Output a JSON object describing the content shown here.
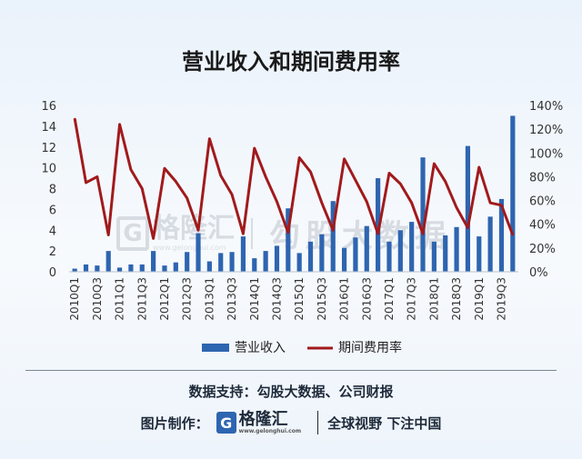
{
  "title": "营业收入和期间费用率",
  "chart_data": {
    "type": "bar",
    "categories": [
      "2010Q1",
      "2010Q2",
      "2010Q3",
      "2010Q4",
      "2011Q1",
      "2011Q2",
      "2011Q3",
      "2011Q4",
      "2012Q1",
      "2012Q2",
      "2012Q3",
      "2012Q4",
      "2013Q1",
      "2013Q2",
      "2013Q3",
      "2013Q4",
      "2014Q1",
      "2014Q2",
      "2014Q3",
      "2014Q4",
      "2015Q1",
      "2015Q2",
      "2015Q3",
      "2015Q4",
      "2016Q1",
      "2016Q2",
      "2016Q3",
      "2016Q4",
      "2017Q1",
      "2017Q2",
      "2017Q3",
      "2017Q4",
      "2018Q1",
      "2018Q2",
      "2018Q3",
      "2018Q4",
      "2019Q1",
      "2019Q2",
      "2019Q3",
      "2019Q4"
    ],
    "tick_labels": [
      "2010Q1",
      "2010Q3",
      "2011Q1",
      "2011Q3",
      "2012Q1",
      "2012Q3",
      "2013Q1",
      "2013Q3",
      "2014Q1",
      "2014Q3",
      "2015Q1",
      "2015Q3",
      "2016Q1",
      "2016Q3",
      "2017Q1",
      "2017Q3",
      "2018Q1",
      "2018Q3",
      "2019Q1",
      "2019Q3"
    ],
    "series": [
      {
        "name": "营业收入",
        "type": "bar",
        "axis": "left",
        "color": "#2e65b0",
        "values": [
          0.3,
          0.7,
          0.6,
          2.0,
          0.4,
          0.7,
          0.7,
          2.0,
          0.6,
          0.9,
          1.9,
          3.7,
          1.0,
          1.8,
          1.9,
          3.4,
          1.3,
          2.0,
          2.5,
          6.1,
          1.8,
          2.9,
          3.6,
          6.8,
          2.3,
          3.3,
          4.4,
          9.0,
          2.9,
          4.0,
          4.8,
          11.0,
          2.9,
          3.5,
          4.3,
          12.1,
          3.4,
          5.3,
          7.0,
          15.0
        ]
      },
      {
        "name": "期间费用率",
        "type": "line",
        "axis": "right",
        "color": "#a11a1c",
        "values": [
          129,
          75,
          80,
          31,
          124,
          86,
          70,
          28,
          87,
          76,
          62,
          35,
          112,
          81,
          65,
          32,
          104,
          80,
          59,
          33,
          96,
          84,
          58,
          35,
          95,
          77,
          59,
          32,
          83,
          74,
          58,
          32,
          91,
          76,
          54,
          37,
          88,
          58,
          56,
          31
        ]
      }
    ],
    "y_left": {
      "min": 0,
      "max": 16,
      "ticks": [
        "0",
        "2",
        "4",
        "6",
        "8",
        "10",
        "12",
        "14",
        "16"
      ]
    },
    "y_right": {
      "min": 0,
      "max": 140,
      "ticks": [
        "0%",
        "20%",
        "40%",
        "60%",
        "80%",
        "100%",
        "120%",
        "140%"
      ]
    },
    "legend_position": "bottom",
    "grid": false
  },
  "legend": {
    "bar_label": "营业收入",
    "line_label": "期间费用率"
  },
  "footer": {
    "source": "数据支持：勾股大数据、公司财报",
    "credit_label": "图片制作：",
    "logo_name": "格隆汇",
    "logo_url": "www.gelonghui.com",
    "slogan": "全球视野 下注中国"
  },
  "watermark": {
    "name": "格隆汇",
    "url": "www.gelonghui.com",
    "slogan": "勾股大数据"
  },
  "colors": {
    "bar": "#2e65b0",
    "line": "#a11a1c"
  }
}
